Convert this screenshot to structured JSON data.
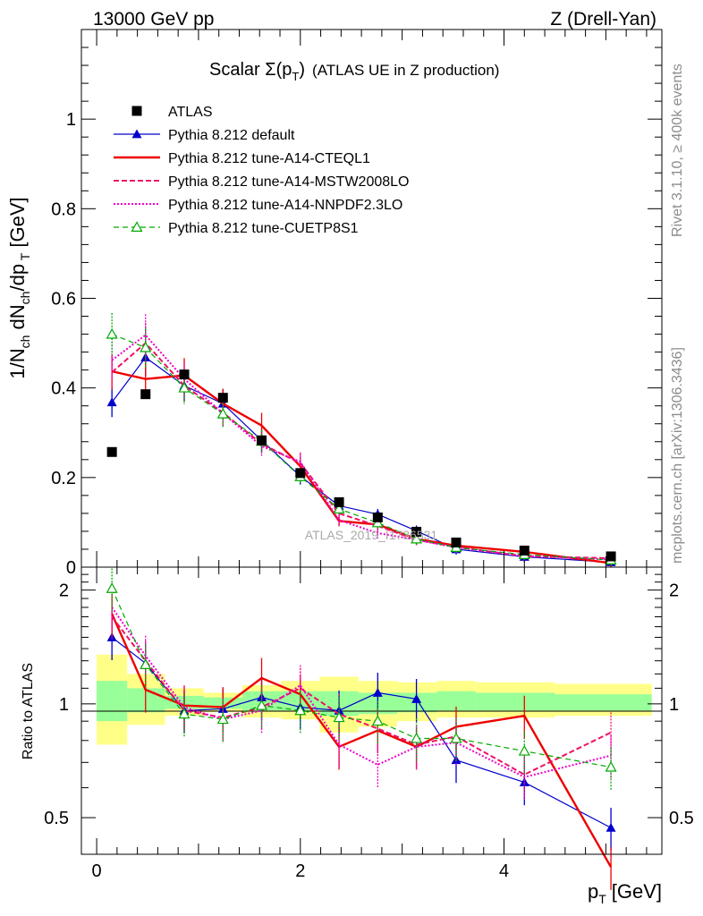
{
  "header": {
    "energy_label": "13000 GeV pp",
    "process_label": "Z (Drell-Yan)",
    "side_rivet": "Rivet 3.1.10, ≥ 400k events",
    "side_mcplots": "mcplots.cern.ch [arXiv:1306.3436]",
    "watermark": "ATLAS_2019_I1736531"
  },
  "colors": {
    "ATLAS": "#000000",
    "default": "#0000cc",
    "CTEQL1": "#ee0000",
    "MSTW": "#ee1166",
    "NNPDF": "#ee00cc",
    "CUETP8S1": "#00aa00",
    "band_inner": "#99ff99",
    "band_outer": "#ffff88"
  },
  "chart_data": [
    {
      "type": "line",
      "panel": "main",
      "title_prefix": "Scalar ",
      "title_sigma": "Σ(p",
      "title_sub": "T",
      "title_close": ")",
      "title_suffix": "(ATLAS UE in Z production)",
      "ylabel_html": "1/N_ch dN_ch/dp_T [GeV]",
      "xlim": [
        -0.15,
        5.55
      ],
      "ylim": [
        0,
        1.2
      ],
      "yticks": [
        0,
        0.2,
        0.4,
        0.6,
        0.8,
        1
      ],
      "ytick_labels": [
        "0",
        "0.2",
        "0.4",
        "0.6",
        "0.8",
        "1"
      ],
      "x": [
        0.15,
        0.48,
        0.86,
        1.24,
        1.62,
        2.0,
        2.38,
        2.76,
        3.14,
        3.53,
        4.2,
        5.05
      ],
      "series": [
        {
          "name": "ATLAS",
          "key": "ATLAS",
          "values": [
            0.257,
            0.386,
            0.43,
            0.378,
            0.283,
            0.21,
            0.145,
            0.111,
            0.079,
            0.055,
            0.037,
            0.024
          ]
        },
        {
          "name": "Pythia 8.212 default",
          "key": "default",
          "values": [
            0.368,
            0.468,
            0.405,
            0.365,
            0.283,
            0.203,
            0.137,
            0.118,
            0.081,
            0.04,
            0.023,
            0.011
          ]
        },
        {
          "name": "Pythia 8.212 tune-A14-CTEQL1",
          "key": "CTEQL1",
          "values": [
            0.437,
            0.42,
            0.428,
            0.365,
            0.316,
            0.225,
            0.103,
            0.095,
            0.063,
            0.048,
            0.034,
            0.009
          ]
        },
        {
          "name": "Pythia 8.212 tune-A14-MSTW2008LO",
          "key": "MSTW",
          "values": [
            0.435,
            0.5,
            0.405,
            0.345,
            0.275,
            0.232,
            0.12,
            0.092,
            0.061,
            0.045,
            0.024,
            0.02
          ]
        },
        {
          "name": "Pythia 8.212 tune-A14-NNPDF2.3LO",
          "key": "NNPDF",
          "values": [
            0.462,
            0.518,
            0.42,
            0.343,
            0.27,
            0.235,
            0.105,
            0.076,
            0.061,
            0.044,
            0.025,
            0.017
          ]
        },
        {
          "name": "Pythia 8.212 tune-CUETP8S1",
          "key": "CUETP8S1",
          "values": [
            0.52,
            0.49,
            0.4,
            0.342,
            0.281,
            0.202,
            0.13,
            0.099,
            0.063,
            0.044,
            0.028,
            0.016
          ]
        }
      ]
    },
    {
      "type": "line",
      "panel": "ratio",
      "ylabel": "Ratio to ATLAS",
      "ylim": [
        0.4,
        2.3
      ],
      "yticks": [
        0.5,
        1,
        2
      ],
      "ytick_labels": [
        "0.5",
        "1",
        "2"
      ],
      "xlabel_main": "p",
      "xlabel_sub": "T",
      "xlabel_unit": "[GeV]",
      "xticks": [
        0,
        2,
        4
      ],
      "xtick_labels": [
        "0",
        "2",
        "4"
      ],
      "x": [
        0.15,
        0.48,
        0.86,
        1.24,
        1.62,
        2.0,
        2.38,
        2.76,
        3.14,
        3.53,
        4.2,
        5.05
      ],
      "band_edges": [
        0.0,
        0.3,
        0.67,
        1.05,
        1.43,
        1.81,
        2.19,
        2.57,
        2.95,
        3.34,
        3.72,
        4.5,
        5.45
      ],
      "band_inner": [
        [
          0.9,
          1.15
        ],
        [
          0.95,
          1.1
        ],
        [
          0.97,
          1.05
        ],
        [
          0.97,
          1.04
        ],
        [
          0.96,
          1.08
        ],
        [
          0.96,
          1.08
        ],
        [
          0.93,
          1.08
        ],
        [
          0.94,
          1.07
        ],
        [
          0.95,
          1.07
        ],
        [
          0.96,
          1.08
        ],
        [
          0.96,
          1.07
        ],
        [
          0.96,
          1.06
        ]
      ],
      "band_outer": [
        [
          0.78,
          1.35
        ],
        [
          0.88,
          1.2
        ],
        [
          0.93,
          1.1
        ],
        [
          0.95,
          1.07
        ],
        [
          0.92,
          1.12
        ],
        [
          0.91,
          1.15
        ],
        [
          0.84,
          1.18
        ],
        [
          0.87,
          1.15
        ],
        [
          0.9,
          1.14
        ],
        [
          0.92,
          1.15
        ],
        [
          0.92,
          1.14
        ],
        [
          0.93,
          1.13
        ]
      ],
      "series": [
        {
          "name": "Pythia 8.212 default",
          "key": "default",
          "values": [
            1.5,
            1.28,
            0.96,
            0.97,
            1.04,
            0.98,
            0.96,
            1.07,
            1.03,
            0.71,
            0.62,
            0.47
          ]
        },
        {
          "name": "Pythia 8.212 tune-A14-CTEQL1",
          "key": "CTEQL1",
          "values": [
            1.73,
            1.09,
            0.99,
            0.98,
            1.17,
            1.06,
            0.77,
            0.85,
            0.77,
            0.87,
            0.93,
            0.37
          ]
        },
        {
          "name": "Pythia 8.212 tune-A14-MSTW2008LO",
          "key": "MSTW",
          "values": [
            1.7,
            1.3,
            0.96,
            0.92,
            0.98,
            1.1,
            0.94,
            0.86,
            0.78,
            0.82,
            0.65,
            0.84
          ]
        },
        {
          "name": "Pythia 8.212 tune-A14-NNPDF2.3LO",
          "key": "NNPDF",
          "values": [
            1.8,
            1.34,
            0.98,
            0.91,
            0.96,
            1.12,
            0.78,
            0.69,
            0.77,
            0.79,
            0.64,
            0.73
          ]
        },
        {
          "name": "Pythia 8.212 tune-CUETP8S1",
          "key": "CUETP8S1",
          "values": [
            2.02,
            1.27,
            0.94,
            0.91,
            0.99,
            0.96,
            0.92,
            0.9,
            0.81,
            0.81,
            0.75,
            0.68
          ]
        }
      ]
    }
  ]
}
